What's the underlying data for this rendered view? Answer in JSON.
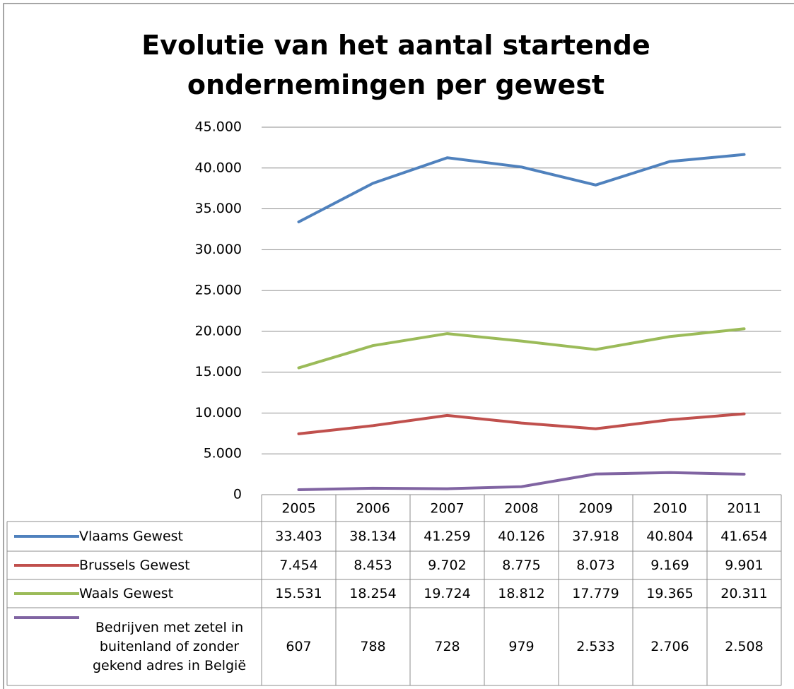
{
  "chart_data": {
    "type": "line",
    "title": "Evolutie van het aantal startende ondernemingen per gewest",
    "categories": [
      "2005",
      "2006",
      "2007",
      "2008",
      "2009",
      "2010",
      "2011"
    ],
    "series": [
      {
        "name": "Vlaams Gewest",
        "color": "#4f81bd",
        "values": [
          33403,
          38134,
          41259,
          40126,
          37918,
          40804,
          41654
        ],
        "value_labels": [
          "33.403",
          "38.134",
          "41.259",
          "40.126",
          "37.918",
          "40.804",
          "41.654"
        ]
      },
      {
        "name": "Brussels Gewest",
        "color": "#c0504d",
        "values": [
          7454,
          8453,
          9702,
          8775,
          8073,
          9169,
          9901
        ],
        "value_labels": [
          "7.454",
          "8.453",
          "9.702",
          "8.775",
          "8.073",
          "9.169",
          "9.901"
        ]
      },
      {
        "name": "Waals Gewest",
        "color": "#9bbb59",
        "values": [
          15531,
          18254,
          19724,
          18812,
          17779,
          19365,
          20311
        ],
        "value_labels": [
          "15.531",
          "18.254",
          "19.724",
          "18.812",
          "17.779",
          "19.365",
          "20.311"
        ]
      },
      {
        "name": "Bedrijven met zetel in buitenland of zonder gekend adres in België",
        "color": "#8064a2",
        "values": [
          607,
          788,
          728,
          979,
          2533,
          2706,
          2508
        ],
        "value_labels": [
          "607",
          "788",
          "728",
          "979",
          "2.533",
          "2.706",
          "2.508"
        ]
      }
    ],
    "ylim": [
      0,
      45000
    ],
    "yticks": [
      0,
      {
        "value": 5000,
        "label": "5.000"
      },
      {
        "value": 10000,
        "label": "10.000"
      },
      {
        "value": 15000,
        "label": "15.000"
      },
      {
        "value": 20000,
        "label": "20.000"
      },
      {
        "value": 25000,
        "label": "25.000"
      },
      {
        "value": 30000,
        "label": "30.000"
      },
      {
        "value": 35000,
        "label": "35.000"
      },
      {
        "value": 40000,
        "label": "40.000"
      },
      {
        "value": 45000,
        "label": "45.000"
      }
    ],
    "grid": true
  }
}
